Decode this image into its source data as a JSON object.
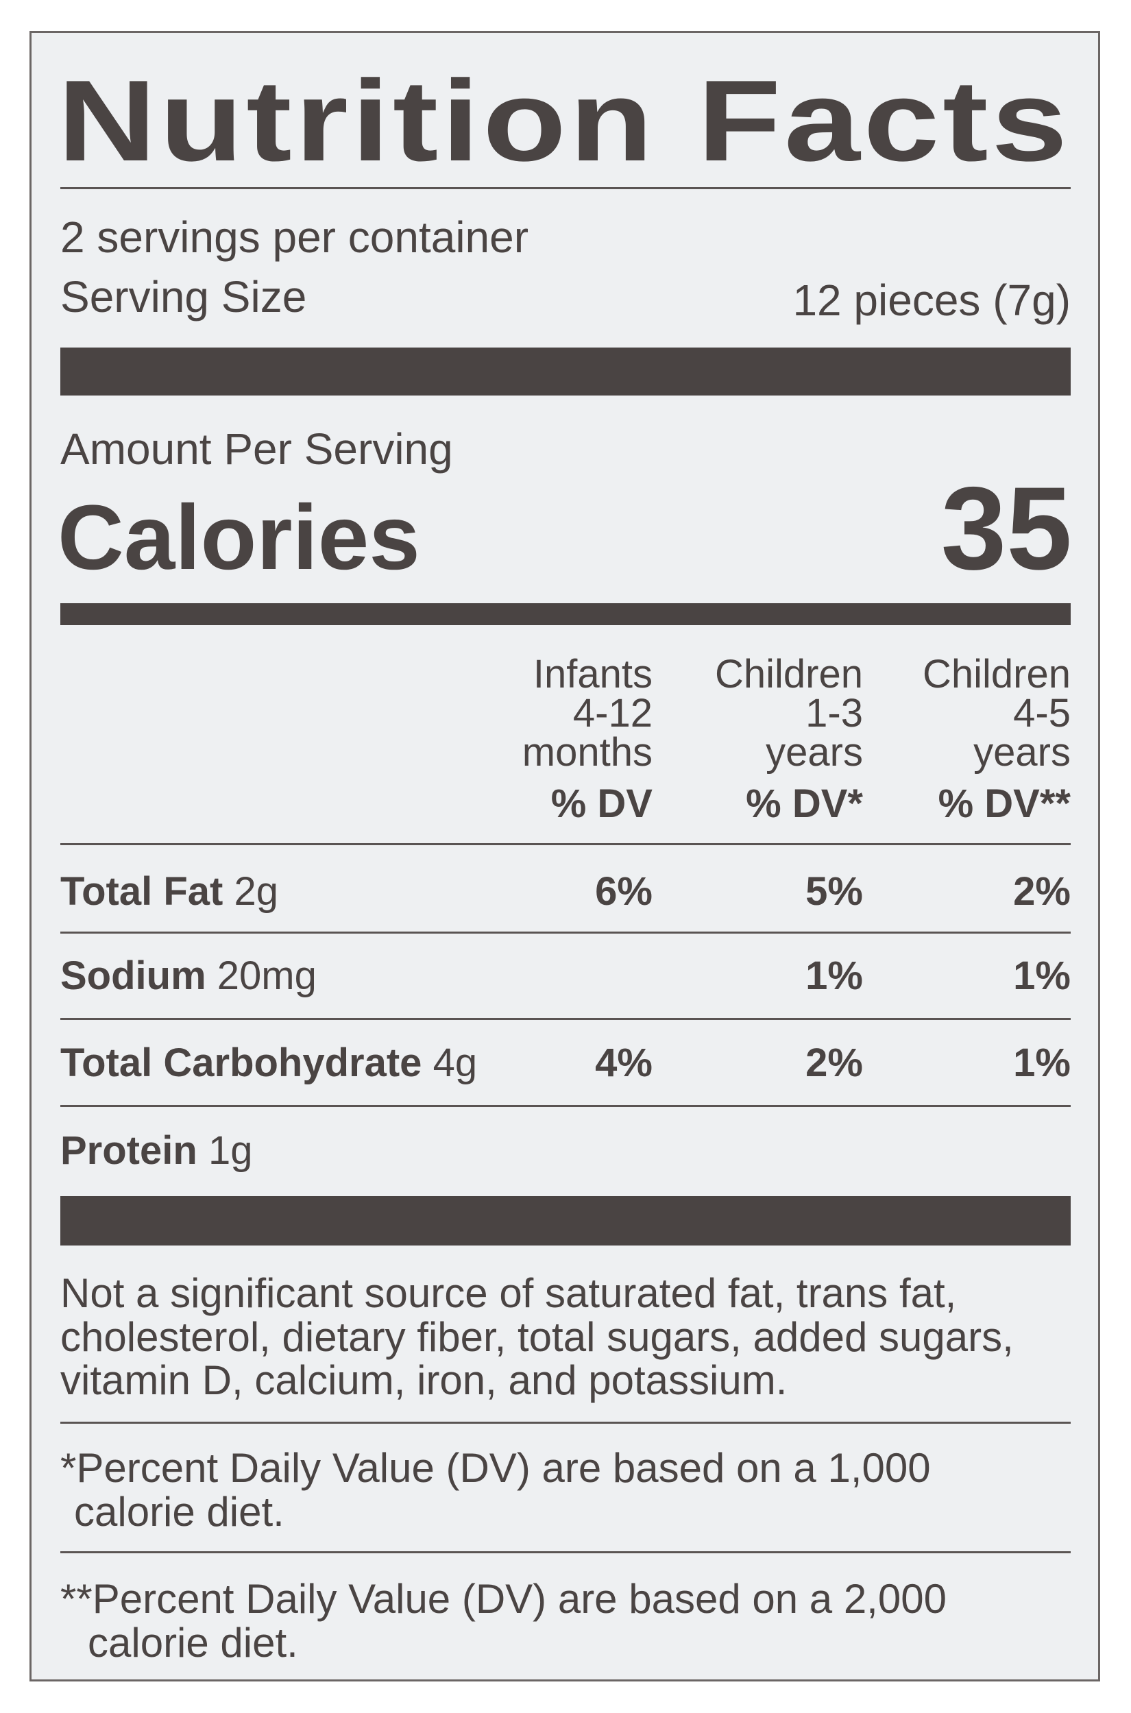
{
  "label": {
    "title": "Nutrition Facts",
    "servings_per_container": "2 servings per container",
    "serving_size_label": "Serving Size",
    "serving_size_value": "12 pieces (7g)",
    "amount_per_serving": "Amount Per Serving",
    "calories_label": "Calories",
    "calories_value": "35",
    "columns": [
      {
        "line1": "Infants",
        "line2": "4-12",
        "line3": "months",
        "dv": "% DV"
      },
      {
        "line1": "Children",
        "line2": "1-3",
        "line3": "years",
        "dv": "% DV*"
      },
      {
        "line1": "Children",
        "line2": "4-5",
        "line3": "years",
        "dv": "% DV**"
      }
    ],
    "nutrients": [
      {
        "name": "Total Fat",
        "amount": "2g",
        "dv": [
          "6%",
          "5%",
          "2%"
        ]
      },
      {
        "name": "Sodium",
        "amount": "20mg",
        "dv": [
          "",
          "1%",
          "1%"
        ]
      },
      {
        "name": "Total Carbohydrate",
        "amount": "4g",
        "dv": [
          "4%",
          "2%",
          "1%"
        ]
      },
      {
        "name": "Protein",
        "amount": "1g",
        "dv": [
          "",
          "",
          ""
        ]
      }
    ],
    "not_significant": [
      "Not a significant source of saturated fat, trans fat,",
      "cholesterol, dietary fiber, total sugars, added sugars,",
      "vitamin D, calcium, iron, and potassium."
    ],
    "footnote1": [
      "*Percent Daily Value (DV) are based on a 1,000",
      "calorie diet."
    ],
    "footnote2": [
      "**Percent Daily Value (DV) are based on a 2,000",
      "calorie diet."
    ]
  },
  "colors": {
    "ink": "#4a4443",
    "background": "#eef0f2"
  }
}
